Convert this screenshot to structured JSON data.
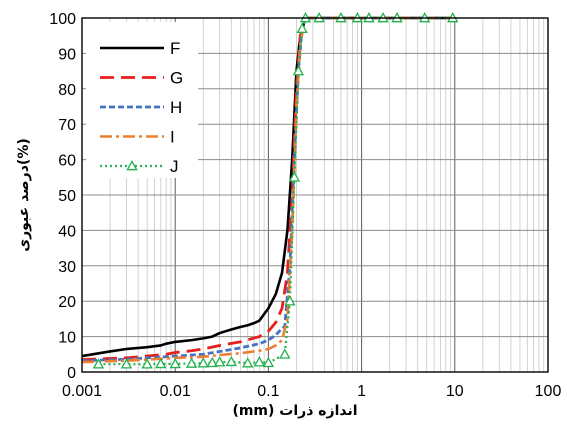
{
  "chart_data": {
    "type": "line",
    "title": "",
    "xlabel": "اندازه ذرات (mm)",
    "ylabel": "(%)درصد عبوری",
    "x_scale": "log",
    "xlim": [
      0.001,
      100
    ],
    "ylim": [
      0,
      100
    ],
    "x_ticks": [
      0.001,
      0.01,
      0.1,
      1,
      10,
      100
    ],
    "x_tick_labels": [
      "0.001",
      "0.01",
      "0.1",
      "1",
      "10",
      "100"
    ],
    "y_ticks": [
      0,
      10,
      20,
      30,
      40,
      50,
      60,
      70,
      80,
      90,
      100
    ],
    "y_tick_labels": [
      "0",
      "10",
      "20",
      "30",
      "40",
      "50",
      "60",
      "70",
      "80",
      "90",
      "100"
    ],
    "grid": true,
    "legend_position": "top-left",
    "series": [
      {
        "name": "F",
        "color": "#000000",
        "dash": "solid",
        "marker": "none",
        "points": [
          [
            0.001,
            4.5
          ],
          [
            0.002,
            5.8
          ],
          [
            0.003,
            6.5
          ],
          [
            0.005,
            7.0
          ],
          [
            0.007,
            7.5
          ],
          [
            0.008,
            8.0
          ],
          [
            0.01,
            8.5
          ],
          [
            0.015,
            9.0
          ],
          [
            0.02,
            9.5
          ],
          [
            0.025,
            10.0
          ],
          [
            0.03,
            11.0
          ],
          [
            0.04,
            12.0
          ],
          [
            0.05,
            12.7
          ],
          [
            0.06,
            13.2
          ],
          [
            0.07,
            13.8
          ],
          [
            0.08,
            14.5
          ],
          [
            0.1,
            18.0
          ],
          [
            0.12,
            22.0
          ],
          [
            0.14,
            28.0
          ],
          [
            0.16,
            40.0
          ],
          [
            0.18,
            60.0
          ],
          [
            0.2,
            85.0
          ],
          [
            0.22,
            95.0
          ],
          [
            0.25,
            100.0
          ],
          [
            10,
            100.0
          ]
        ]
      },
      {
        "name": "G",
        "color": "#e8201b",
        "dash": "long",
        "marker": "none",
        "points": [
          [
            0.001,
            3.5
          ],
          [
            0.003,
            4.0
          ],
          [
            0.005,
            4.5
          ],
          [
            0.008,
            5.0
          ],
          [
            0.01,
            5.5
          ],
          [
            0.015,
            6.0
          ],
          [
            0.02,
            6.5
          ],
          [
            0.03,
            7.5
          ],
          [
            0.05,
            8.5
          ],
          [
            0.08,
            10.0
          ],
          [
            0.1,
            11.5
          ],
          [
            0.12,
            14.0
          ],
          [
            0.14,
            18.0
          ],
          [
            0.16,
            28.0
          ],
          [
            0.18,
            50.0
          ],
          [
            0.2,
            80.0
          ],
          [
            0.22,
            95.0
          ],
          [
            0.25,
            100.0
          ],
          [
            10,
            100.0
          ]
        ]
      },
      {
        "name": "H",
        "color": "#4472c4",
        "dash": "short",
        "marker": "none",
        "points": [
          [
            0.001,
            3.2
          ],
          [
            0.003,
            3.6
          ],
          [
            0.005,
            4.0
          ],
          [
            0.01,
            4.5
          ],
          [
            0.02,
            5.0
          ],
          [
            0.03,
            5.8
          ],
          [
            0.05,
            6.8
          ],
          [
            0.08,
            8.0
          ],
          [
            0.1,
            9.0
          ],
          [
            0.12,
            10.5
          ],
          [
            0.15,
            13.0
          ],
          [
            0.17,
            30.0
          ],
          [
            0.19,
            60.0
          ],
          [
            0.21,
            85.0
          ],
          [
            0.23,
            97.0
          ],
          [
            0.25,
            100.0
          ],
          [
            10,
            100.0
          ]
        ]
      },
      {
        "name": "I",
        "color": "#ed7d31",
        "dash": "dashdot",
        "marker": "none",
        "points": [
          [
            0.001,
            2.8
          ],
          [
            0.003,
            3.2
          ],
          [
            0.005,
            3.5
          ],
          [
            0.01,
            4.0
          ],
          [
            0.02,
            4.3
          ],
          [
            0.03,
            4.8
          ],
          [
            0.05,
            5.3
          ],
          [
            0.08,
            6.0
          ],
          [
            0.1,
            6.5
          ],
          [
            0.12,
            7.5
          ],
          [
            0.14,
            9.0
          ],
          [
            0.16,
            15.0
          ],
          [
            0.18,
            40.0
          ],
          [
            0.2,
            75.0
          ],
          [
            0.22,
            93.0
          ],
          [
            0.25,
            100.0
          ],
          [
            10,
            100.0
          ]
        ]
      },
      {
        "name": "J",
        "color": "#22b14c",
        "dash": "dotted",
        "marker": "triangle",
        "points": [
          [
            0.0015,
            2.2
          ],
          [
            0.003,
            2.2
          ],
          [
            0.005,
            2.2
          ],
          [
            0.007,
            2.3
          ],
          [
            0.01,
            2.3
          ],
          [
            0.015,
            2.4
          ],
          [
            0.02,
            2.5
          ],
          [
            0.025,
            2.6
          ],
          [
            0.03,
            2.8
          ],
          [
            0.04,
            2.9
          ],
          [
            0.06,
            2.5
          ],
          [
            0.08,
            2.8
          ],
          [
            0.1,
            2.6
          ],
          [
            0.15,
            5.0
          ],
          [
            0.17,
            20.0
          ],
          [
            0.19,
            55.0
          ],
          [
            0.21,
            85.0
          ],
          [
            0.23,
            97.0
          ],
          [
            0.25,
            100.0
          ],
          [
            0.35,
            100.0
          ],
          [
            0.6,
            100.0
          ],
          [
            0.9,
            100.0
          ],
          [
            1.2,
            100.0
          ],
          [
            1.7,
            100.0
          ],
          [
            2.4,
            100.0
          ],
          [
            4.75,
            100.0
          ],
          [
            9.5,
            100.0
          ]
        ]
      }
    ]
  }
}
